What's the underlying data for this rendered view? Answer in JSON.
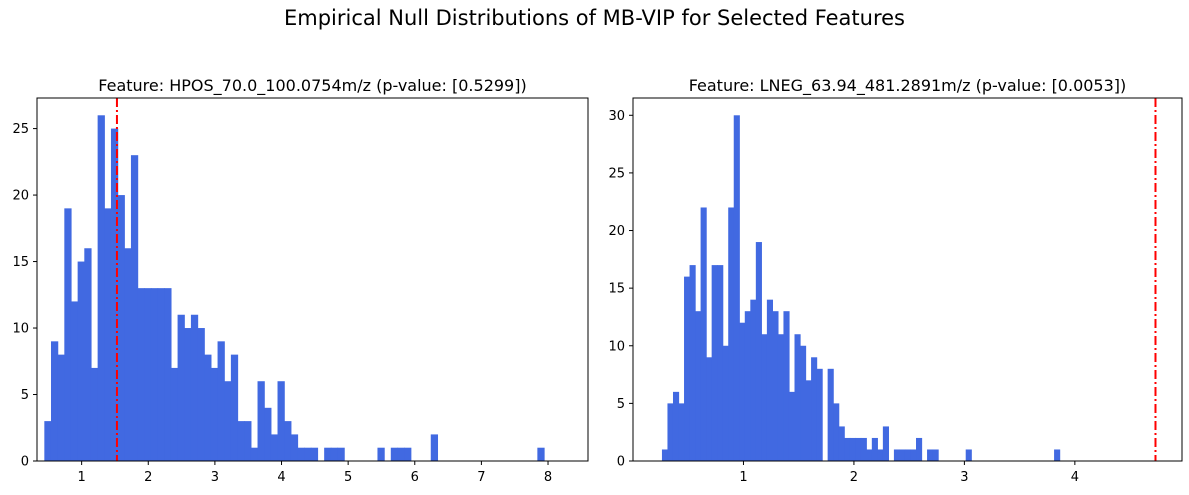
{
  "figure": {
    "title": "Empirical Null Distributions of MB-VIP for Selected Features"
  },
  "chart_data": [
    {
      "type": "bar",
      "title": "Feature: HPOS_70.0_100.0754m/z (p-value: [0.5299])",
      "xlabel": "",
      "ylabel": "",
      "bar_color": "#4169e1",
      "line_color": "#ff0000",
      "bin_start": 0.44,
      "bin_width": 0.1,
      "counts": [
        3,
        9,
        8,
        19,
        12,
        15,
        16,
        7,
        26,
        19,
        25,
        20,
        16,
        23,
        13,
        13,
        13,
        13,
        13,
        7,
        11,
        10,
        11,
        10,
        8,
        7,
        9,
        6,
        8,
        3,
        3,
        1,
        6,
        4,
        2,
        6,
        3,
        2,
        1,
        1,
        1,
        0,
        1,
        1,
        1,
        0,
        0,
        0,
        0,
        0,
        1,
        0,
        1,
        1,
        1,
        0,
        0,
        0,
        2,
        0,
        0,
        0,
        0,
        0,
        0,
        0,
        0,
        0,
        0,
        0,
        0,
        0,
        0,
        0,
        1
      ],
      "observed_value": 1.53,
      "xlim": [
        0.33,
        8.6
      ],
      "ylim": [
        0,
        27.3
      ],
      "xticks": [
        1,
        2,
        3,
        4,
        5,
        6,
        7,
        8
      ],
      "yticks": [
        0,
        5,
        10,
        15,
        20,
        25
      ]
    },
    {
      "type": "bar",
      "title": "Feature: LNEG_63.94_481.2891m/z (p-value: [0.0053])",
      "xlabel": "",
      "ylabel": "",
      "bar_color": "#4169e1",
      "line_color": "#ff0000",
      "bin_start": 0.262,
      "bin_width": 0.05,
      "counts": [
        1,
        5,
        6,
        5,
        16,
        17,
        13,
        22,
        9,
        17,
        17,
        10,
        22,
        30,
        12,
        13,
        14,
        19,
        11,
        14,
        13,
        11,
        13,
        6,
        11,
        10,
        7,
        9,
        8,
        0,
        8,
        5,
        3,
        2,
        2,
        2,
        2,
        1,
        2,
        1,
        3,
        0,
        1,
        1,
        1,
        1,
        2,
        0,
        1,
        1,
        0,
        0,
        0,
        0,
        0,
        1,
        0,
        0,
        0,
        0,
        0,
        0,
        0,
        0,
        0,
        0,
        0,
        0,
        0,
        0,
        0,
        1
      ],
      "observed_value": 4.73,
      "xlim": [
        0.0,
        4.97
      ],
      "ylim": [
        0,
        31.5
      ],
      "xticks": [
        1,
        2,
        3,
        4
      ],
      "yticks": [
        0,
        5,
        10,
        15,
        20,
        25,
        30
      ]
    }
  ]
}
